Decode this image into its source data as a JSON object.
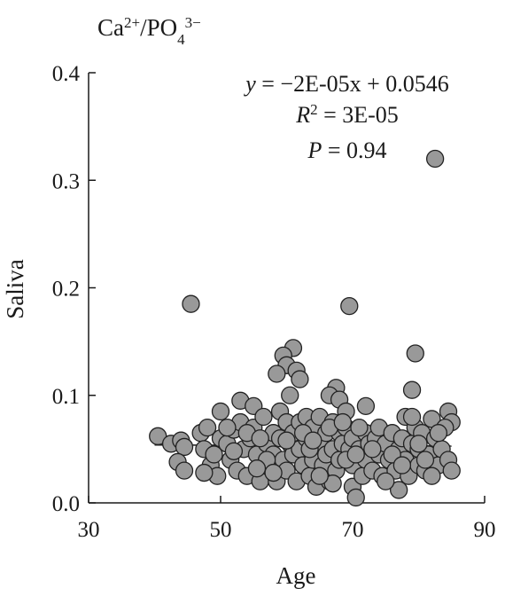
{
  "chart_data": {
    "type": "scatter",
    "title": "Ca²⁺/PO₄³⁻",
    "title_parts": {
      "base1": "Ca",
      "sup1": "2+",
      "base2": "/PO",
      "sub2": "4",
      "sup2": "3−"
    },
    "xlabel": "Age",
    "ylabel": "Saliva",
    "xlim": [
      30,
      90
    ],
    "ylim": [
      0,
      0.4
    ],
    "x_ticks": [
      30,
      50,
      70,
      90
    ],
    "x_tick_labels": [
      "30",
      "50",
      "70",
      "90"
    ],
    "y_ticks": [
      0,
      0.1,
      0.2,
      0.3,
      0.4
    ],
    "y_tick_labels": [
      "0.0",
      "0.1",
      "0.2",
      "0.3",
      "0.4"
    ],
    "grid": false,
    "marker_color": "#999999",
    "marker_edge": "#222222",
    "annotation": {
      "equation": "y = −2E-05x + 0.0546",
      "eq_var": "y",
      "eq_rest": " = −2E-05x + 0.0546",
      "r2_var": "R",
      "r2_sup": "2",
      "r2_rest": " = 3E-05",
      "p_var": "P",
      "p_rest": " = 0.94"
    },
    "fit_line": {
      "slope": -2e-05,
      "intercept": 0.0546,
      "x_range": [
        40,
        85
      ]
    },
    "points": [
      [
        45.5,
        0.185
      ],
      [
        69.5,
        0.183
      ],
      [
        82.5,
        0.32
      ],
      [
        61,
        0.144
      ],
      [
        59.5,
        0.137
      ],
      [
        60,
        0.128
      ],
      [
        61.5,
        0.123
      ],
      [
        58.5,
        0.12
      ],
      [
        62,
        0.115
      ],
      [
        67.5,
        0.107
      ],
      [
        66.5,
        0.1
      ],
      [
        68,
        0.096
      ],
      [
        60.5,
        0.1
      ],
      [
        79.5,
        0.139
      ],
      [
        79,
        0.105
      ],
      [
        84.5,
        0.085
      ],
      [
        85,
        0.075
      ],
      [
        72,
        0.09
      ],
      [
        40.5,
        0.062
      ],
      [
        42.5,
        0.055
      ],
      [
        44,
        0.058
      ],
      [
        44.5,
        0.052
      ],
      [
        43.5,
        0.038
      ],
      [
        44.5,
        0.03
      ],
      [
        47,
        0.065
      ],
      [
        48,
        0.07
      ],
      [
        47.5,
        0.05
      ],
      [
        48.5,
        0.035
      ],
      [
        49,
        0.045
      ],
      [
        49.5,
        0.025
      ],
      [
        50,
        0.085
      ],
      [
        50,
        0.06
      ],
      [
        51,
        0.055
      ],
      [
        51.5,
        0.04
      ],
      [
        52,
        0.068
      ],
      [
        52.5,
        0.03
      ],
      [
        53,
        0.095
      ],
      [
        53,
        0.075
      ],
      [
        53.5,
        0.05
      ],
      [
        54,
        0.025
      ],
      [
        54.5,
        0.06
      ],
      [
        55,
        0.09
      ],
      [
        55,
        0.07
      ],
      [
        55.5,
        0.045
      ],
      [
        56,
        0.02
      ],
      [
        56.5,
        0.08
      ],
      [
        57,
        0.055
      ],
      [
        57.5,
        0.035
      ],
      [
        58,
        0.065
      ],
      [
        58,
        0.045
      ],
      [
        58.5,
        0.02
      ],
      [
        59,
        0.085
      ],
      [
        59,
        0.06
      ],
      [
        59.5,
        0.04
      ],
      [
        60,
        0.075
      ],
      [
        60,
        0.03
      ],
      [
        60.5,
        0.055
      ],
      [
        61,
        0.065
      ],
      [
        61,
        0.045
      ],
      [
        61.5,
        0.02
      ],
      [
        62,
        0.075
      ],
      [
        62,
        0.05
      ],
      [
        62.5,
        0.035
      ],
      [
        63,
        0.08
      ],
      [
        63,
        0.06
      ],
      [
        63.5,
        0.025
      ],
      [
        64,
        0.07
      ],
      [
        64,
        0.04
      ],
      [
        64.5,
        0.015
      ],
      [
        65,
        0.08
      ],
      [
        65,
        0.055
      ],
      [
        65.5,
        0.035
      ],
      [
        66,
        0.065
      ],
      [
        66,
        0.045
      ],
      [
        66.5,
        0.02
      ],
      [
        67,
        0.075
      ],
      [
        67,
        0.05
      ],
      [
        67.5,
        0.03
      ],
      [
        68,
        0.065
      ],
      [
        68,
        0.04
      ],
      [
        68.5,
        0.055
      ],
      [
        69,
        0.085
      ],
      [
        69,
        0.07
      ],
      [
        69.5,
        0.05
      ],
      [
        70,
        0.06
      ],
      [
        70,
        0.035
      ],
      [
        70,
        0.015
      ],
      [
        70.5,
        0.005
      ],
      [
        71,
        0.05
      ],
      [
        71.5,
        0.025
      ],
      [
        72,
        0.065
      ],
      [
        72,
        0.04
      ],
      [
        72.5,
        0.055
      ],
      [
        73,
        0.03
      ],
      [
        73.5,
        0.06
      ],
      [
        74,
        0.045
      ],
      [
        74,
        0.07
      ],
      [
        74.5,
        0.025
      ],
      [
        75,
        0.055
      ],
      [
        75.5,
        0.04
      ],
      [
        76,
        0.065
      ],
      [
        76.5,
        0.03
      ],
      [
        77,
        0.05
      ],
      [
        77,
        0.012
      ],
      [
        77.5,
        0.06
      ],
      [
        78,
        0.08
      ],
      [
        78,
        0.04
      ],
      [
        78.5,
        0.025
      ],
      [
        79,
        0.055
      ],
      [
        79.5,
        0.07
      ],
      [
        80,
        0.05
      ],
      [
        80,
        0.035
      ],
      [
        80.5,
        0.065
      ],
      [
        81,
        0.03
      ],
      [
        81.5,
        0.045
      ],
      [
        82,
        0.078
      ],
      [
        82.5,
        0.06
      ],
      [
        83,
        0.035
      ],
      [
        83.5,
        0.05
      ],
      [
        84,
        0.07
      ],
      [
        84.5,
        0.04
      ],
      [
        85,
        0.03
      ],
      [
        63.5,
        0.05
      ],
      [
        66.5,
        0.07
      ],
      [
        57,
        0.04
      ],
      [
        54,
        0.065
      ],
      [
        69,
        0.04
      ],
      [
        75,
        0.02
      ],
      [
        79,
        0.08
      ],
      [
        47.5,
        0.028
      ],
      [
        51,
        0.07
      ],
      [
        56,
        0.06
      ],
      [
        58,
        0.028
      ],
      [
        62.5,
        0.065
      ],
      [
        67,
        0.018
      ],
      [
        71,
        0.07
      ],
      [
        73,
        0.05
      ],
      [
        76,
        0.045
      ],
      [
        80,
        0.055
      ],
      [
        81,
        0.04
      ],
      [
        83,
        0.065
      ],
      [
        60,
        0.058
      ],
      [
        64,
        0.058
      ],
      [
        68.5,
        0.075
      ],
      [
        52,
        0.048
      ],
      [
        55.5,
        0.032
      ],
      [
        65,
        0.025
      ],
      [
        70.5,
        0.045
      ],
      [
        77.5,
        0.035
      ],
      [
        82,
        0.025
      ]
    ]
  }
}
